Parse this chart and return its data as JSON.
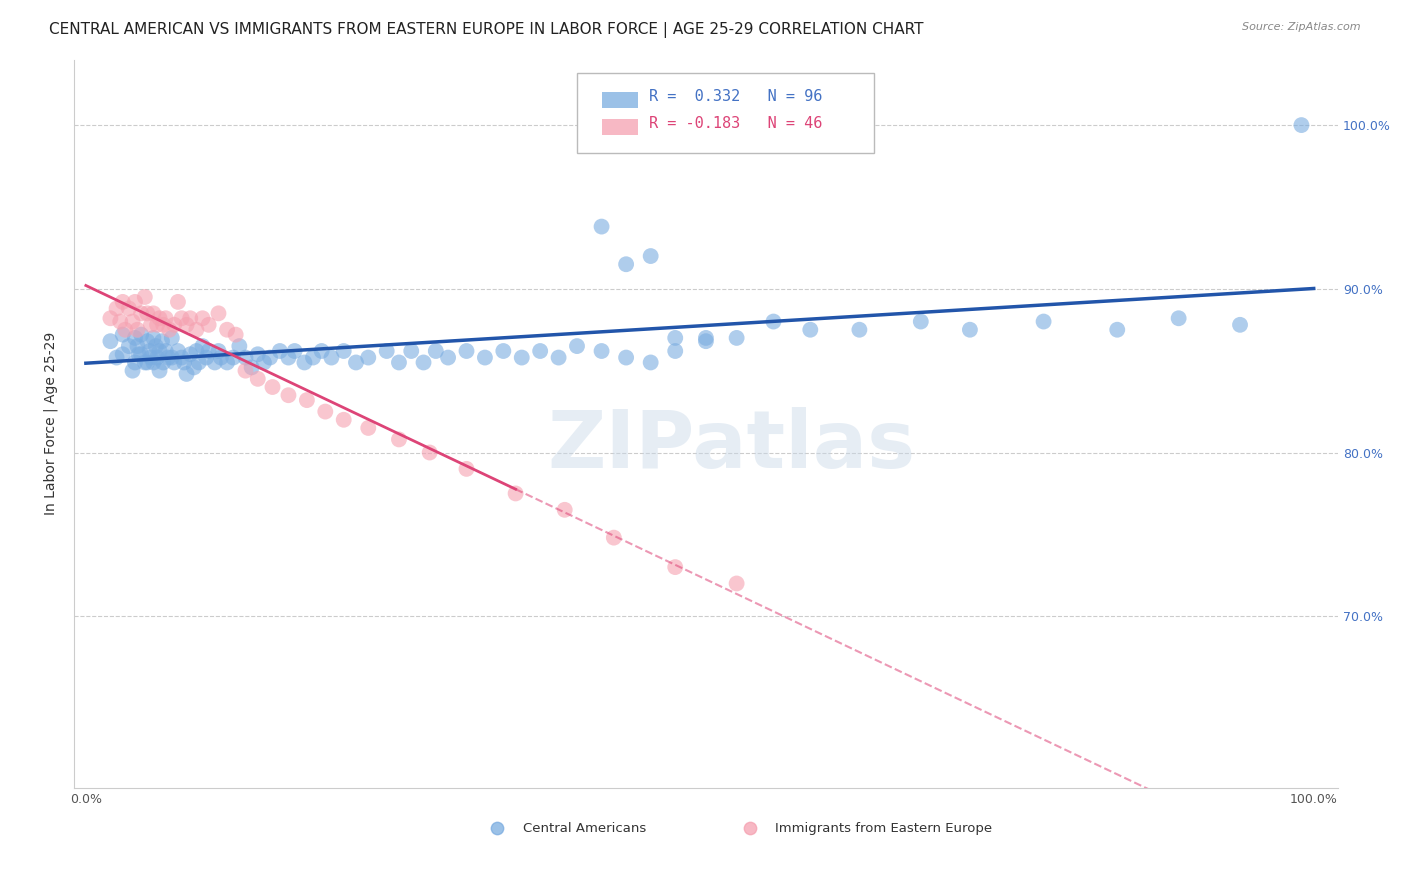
{
  "title": "CENTRAL AMERICAN VS IMMIGRANTS FROM EASTERN EUROPE IN LABOR FORCE | AGE 25-29 CORRELATION CHART",
  "source": "Source: ZipAtlas.com",
  "ylabel": "In Labor Force | Age 25-29",
  "blue_color": "#7aace0",
  "pink_color": "#f5a0b0",
  "blue_line_color": "#2255aa",
  "pink_line_color": "#dd4477",
  "watermark": "ZIPatlas",
  "grid_color": "#cccccc",
  "background_color": "#ffffff",
  "title_fontsize": 11,
  "axis_label_fontsize": 10,
  "tick_fontsize": 9,
  "blue_points_x": [
    0.02,
    0.025,
    0.03,
    0.03,
    0.035,
    0.038,
    0.04,
    0.04,
    0.042,
    0.043,
    0.045,
    0.045,
    0.048,
    0.05,
    0.05,
    0.052,
    0.053,
    0.055,
    0.055,
    0.057,
    0.058,
    0.06,
    0.06,
    0.062,
    0.063,
    0.065,
    0.067,
    0.07,
    0.07,
    0.072,
    0.075,
    0.078,
    0.08,
    0.082,
    0.085,
    0.088,
    0.09,
    0.092,
    0.095,
    0.098,
    0.1,
    0.105,
    0.108,
    0.11,
    0.115,
    0.12,
    0.125,
    0.13,
    0.135,
    0.14,
    0.145,
    0.15,
    0.158,
    0.165,
    0.17,
    0.178,
    0.185,
    0.192,
    0.2,
    0.21,
    0.22,
    0.23,
    0.245,
    0.255,
    0.265,
    0.275,
    0.285,
    0.295,
    0.31,
    0.325,
    0.34,
    0.355,
    0.37,
    0.385,
    0.4,
    0.42,
    0.44,
    0.46,
    0.48,
    0.505,
    0.42,
    0.44,
    0.46,
    0.48,
    0.505,
    0.53,
    0.56,
    0.59,
    0.63,
    0.68,
    0.72,
    0.78,
    0.84,
    0.89,
    0.94,
    0.99
  ],
  "blue_points_y": [
    0.868,
    0.858,
    0.872,
    0.86,
    0.865,
    0.85,
    0.87,
    0.855,
    0.865,
    0.86,
    0.872,
    0.86,
    0.855,
    0.868,
    0.855,
    0.862,
    0.858,
    0.87,
    0.855,
    0.865,
    0.858,
    0.862,
    0.85,
    0.868,
    0.855,
    0.862,
    0.858,
    0.87,
    0.858,
    0.855,
    0.862,
    0.858,
    0.855,
    0.848,
    0.86,
    0.852,
    0.862,
    0.855,
    0.865,
    0.858,
    0.862,
    0.855,
    0.862,
    0.858,
    0.855,
    0.858,
    0.865,
    0.858,
    0.852,
    0.86,
    0.855,
    0.858,
    0.862,
    0.858,
    0.862,
    0.855,
    0.858,
    0.862,
    0.858,
    0.862,
    0.855,
    0.858,
    0.862,
    0.855,
    0.862,
    0.855,
    0.862,
    0.858,
    0.862,
    0.858,
    0.862,
    0.858,
    0.862,
    0.858,
    0.865,
    0.862,
    0.858,
    0.855,
    0.862,
    0.868,
    0.938,
    0.915,
    0.92,
    0.87,
    0.87,
    0.87,
    0.88,
    0.875,
    0.875,
    0.88,
    0.875,
    0.88,
    0.875,
    0.882,
    0.878,
    1.0
  ],
  "pink_points_x": [
    0.02,
    0.025,
    0.028,
    0.03,
    0.032,
    0.035,
    0.038,
    0.04,
    0.042,
    0.045,
    0.048,
    0.05,
    0.053,
    0.055,
    0.058,
    0.06,
    0.063,
    0.065,
    0.068,
    0.072,
    0.075,
    0.078,
    0.082,
    0.085,
    0.09,
    0.095,
    0.1,
    0.108,
    0.115,
    0.122,
    0.13,
    0.14,
    0.152,
    0.165,
    0.18,
    0.195,
    0.21,
    0.23,
    0.255,
    0.28,
    0.31,
    0.35,
    0.39,
    0.43,
    0.48,
    0.53
  ],
  "pink_points_y": [
    0.882,
    0.888,
    0.88,
    0.892,
    0.875,
    0.888,
    0.88,
    0.892,
    0.875,
    0.885,
    0.895,
    0.885,
    0.878,
    0.885,
    0.878,
    0.882,
    0.878,
    0.882,
    0.875,
    0.878,
    0.892,
    0.882,
    0.878,
    0.882,
    0.875,
    0.882,
    0.878,
    0.885,
    0.875,
    0.872,
    0.85,
    0.845,
    0.84,
    0.835,
    0.832,
    0.825,
    0.82,
    0.815,
    0.808,
    0.8,
    0.79,
    0.775,
    0.765,
    0.748,
    0.73,
    0.72
  ]
}
